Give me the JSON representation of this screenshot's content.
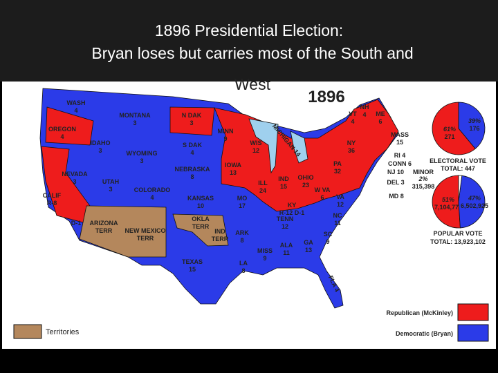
{
  "header": {
    "title_lines": [
      "1896 Presidential Election:",
      "Bryan loses but carries most of the South and",
      "West"
    ]
  },
  "map": {
    "year": "1896",
    "states": [
      [
        "WASH",
        "4"
      ],
      [
        "MONTANA",
        "3"
      ],
      [
        "N DAK",
        "3"
      ],
      [
        "MINN",
        "9"
      ],
      [
        "OREGON",
        "4"
      ],
      [
        "IDAHO",
        "3"
      ],
      [
        "WYOMING",
        "3"
      ],
      [
        "S DAK",
        "4"
      ],
      [
        "WIS",
        "12"
      ],
      [
        "MICHIGAN 14"
      ],
      [
        "NEVADA",
        "3"
      ],
      [
        "UTAH",
        "3"
      ],
      [
        "COLORADO",
        "4"
      ],
      [
        "NEBRASKA",
        "8"
      ],
      [
        "IOWA",
        "13"
      ],
      [
        "ILL",
        "24"
      ],
      [
        "IND",
        "15"
      ],
      [
        "OHIO",
        "23"
      ],
      [
        "PA",
        "32"
      ],
      [
        "NY",
        "36"
      ],
      [
        "VT",
        "4"
      ],
      [
        "NH",
        "4"
      ],
      [
        "ME",
        "6"
      ],
      [
        "MASS",
        "15"
      ],
      [
        "RI 4"
      ],
      [
        "CONN 6"
      ],
      [
        "NJ 10"
      ],
      [
        "DEL 3"
      ],
      [
        "MD 8"
      ],
      [
        "W VA",
        "6"
      ],
      [
        "VA",
        "12"
      ],
      [
        "KY",
        "R-12  D-1"
      ],
      [
        "CALIF",
        "R-8"
      ],
      [
        "D-1"
      ],
      [
        "KANSAS",
        "10"
      ],
      [
        "MO",
        "17"
      ],
      [
        "OKLA",
        "TERR"
      ],
      [
        "IND",
        "TERR"
      ],
      [
        "ARIZONA",
        "TERR"
      ],
      [
        "NEW MEXICO",
        "TERR"
      ],
      [
        "TENN",
        "12"
      ],
      [
        "NC",
        "11"
      ],
      [
        "SC",
        "9"
      ],
      [
        "ARK",
        "8"
      ],
      [
        "MISS",
        "9"
      ],
      [
        "ALA",
        "11"
      ],
      [
        "GA",
        "13"
      ],
      [
        "LA",
        "8"
      ],
      [
        "TEXAS",
        "15"
      ],
      [
        "FLA 4"
      ]
    ],
    "territories_label": "Territories"
  },
  "electoral_vote": {
    "title": "ELECTORAL VOTE",
    "total": "TOTAL: 447",
    "values": [
      61,
      39
    ],
    "value_labels": [
      "61%",
      "39%"
    ],
    "counts": [
      "271",
      "176"
    ],
    "colors": [
      "#ee1c1c",
      "#2b3be8"
    ]
  },
  "popular_vote": {
    "title": "POPULAR VOTE",
    "total": "TOTAL: 13,923,102",
    "values": [
      51,
      47,
      2
    ],
    "value_labels": [
      "51%",
      "47%",
      "2%"
    ],
    "counts": [
      "7,104,779",
      "6,502,925",
      "315,398"
    ],
    "minor_label": "MINOR",
    "colors": [
      "#ee1c1c",
      "#2b3be8",
      "#ffffff"
    ]
  },
  "legend": [
    {
      "label": "Republican (McKinley)",
      "color": "#ee1c1c"
    },
    {
      "label": "Democratic (Bryan)",
      "color": "#2b3be8"
    }
  ]
}
